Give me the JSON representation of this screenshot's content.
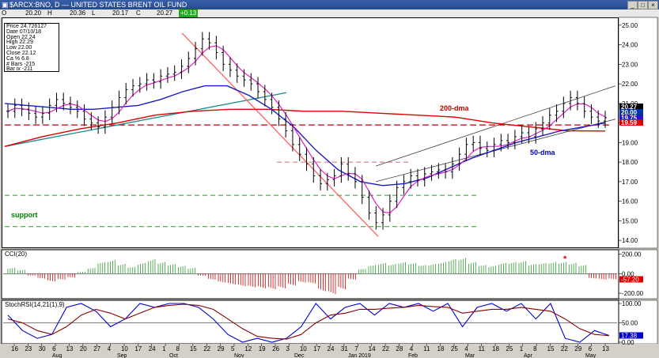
{
  "window": {
    "title": "$ARCX:BNO, D — UNITED STATES BRENT OIL FUND"
  },
  "ohlc_bar": {
    "open_tag": "O",
    "open": "20.20",
    "high_tag": "H",
    "high": "20.36",
    "low_tag": "L",
    "low": "20.17",
    "close_tag": "C",
    "close": "20.27",
    "change": "+0.13"
  },
  "info_panel": [
    {
      "label": "Price",
      "value": "24.726127"
    },
    {
      "label": "Date",
      "value": "07/10/18"
    },
    {
      "label": "Open",
      "value": "22.24"
    },
    {
      "label": "High",
      "value": "22.29"
    },
    {
      "label": "Low",
      "value": "22.00"
    },
    {
      "label": "Close",
      "value": "22.12"
    },
    {
      "label": "Ca %",
      "value": "6.8"
    },
    {
      "label": "# Bars",
      "value": "-215"
    },
    {
      "label": "Bar ix",
      "value": "-211"
    }
  ],
  "colors": {
    "bars": "#000000",
    "dma200": "#e00000",
    "dma50": "#1a1acc",
    "short_ma": "#e020c0",
    "downtrend": "#ff6060",
    "teal_line": "#1a8a8a",
    "channel": "#404040",
    "support": "#2a9a2a",
    "cci_pos": "#2a9a2a",
    "cci_neg": "#cc0000",
    "rsi_fast": "#0000cc",
    "rsi_slow": "#880000"
  },
  "chart_data": [
    {
      "type": "line",
      "title": "",
      "x_tick_labels": [
        "16",
        "23",
        "30",
        "6",
        "13",
        "20",
        "27",
        "4",
        "10",
        "17",
        "24",
        "1",
        "8",
        "15",
        "22",
        "29",
        "5",
        "12",
        "19",
        "26",
        "3",
        "10",
        "17",
        "24",
        "31",
        "7",
        "14",
        "22",
        "28",
        "4",
        "11",
        "18",
        "25",
        "4",
        "11",
        "18",
        "25",
        "1",
        "8",
        "15",
        "22",
        "29",
        "6",
        "13"
      ],
      "month_labels": [
        "Aug",
        "Sep",
        "Oct",
        "Nov",
        "Dec",
        "Jan 2019",
        "Feb",
        "Mar",
        "Apr",
        "May"
      ],
      "ylim": [
        13.6,
        25.4
      ],
      "y_ticks": [
        14,
        15,
        16,
        17,
        18,
        19,
        20,
        21,
        22,
        23,
        24,
        25
      ],
      "y_tick_labels": [
        "14.00",
        "15.00",
        "16.00",
        "17.00",
        "18.00",
        "19.00",
        "20.00",
        "21.00",
        "22.00",
        "23.00",
        "24.00",
        "25.00"
      ],
      "axis_markers": [
        {
          "label": "20.27",
          "value": 20.27,
          "color": "#000000"
        },
        {
          "label": "20.00",
          "value": 20.0,
          "color": "#0033aa"
        },
        {
          "label": "19.75",
          "value": 19.75,
          "color": "#1a1acc"
        },
        {
          "label": "19.59",
          "value": 19.59,
          "color": "#e00000"
        }
      ],
      "close": [
        20.6,
        20.9,
        20.7,
        20.5,
        20.3,
        20.5,
        20.9,
        21.2,
        21.0,
        20.8,
        20.6,
        20.2,
        20.0,
        19.8,
        20.3,
        20.8,
        21.3,
        21.7,
        21.9,
        22.0,
        22.2,
        22.1,
        22.4,
        22.5,
        22.6,
        22.9,
        23.3,
        23.8,
        24.3,
        24.1,
        23.6,
        23.0,
        22.7,
        22.4,
        22.2,
        22.0,
        21.6,
        21.2,
        20.8,
        20.2,
        19.6,
        18.9,
        18.4,
        17.9,
        17.3,
        16.9,
        17.1,
        17.3,
        17.9,
        17.4,
        17.0,
        16.2,
        15.4,
        14.9,
        15.3,
        16.0,
        16.7,
        17.0,
        17.3,
        17.1,
        17.4,
        17.5,
        17.6,
        17.5,
        17.9,
        18.4,
        18.9,
        19.0,
        18.7,
        18.6,
        18.9,
        19.1,
        19.0,
        19.3,
        19.5,
        19.3,
        19.7,
        20.0,
        20.4,
        20.6,
        21.0,
        21.3,
        21.0,
        20.6,
        20.3,
        20.1,
        20.27
      ],
      "dma50": [
        21.0,
        20.9,
        20.8,
        20.7,
        20.7,
        20.8,
        20.9,
        21.2,
        21.6,
        21.9,
        21.9,
        21.4,
        20.7,
        19.8,
        18.6,
        17.6,
        17.0,
        16.8,
        16.9,
        17.2,
        17.7,
        18.2,
        18.6,
        19.0,
        19.3,
        19.6,
        19.8,
        20.0
      ],
      "dma200": [
        18.8,
        19.3,
        19.7,
        20.0,
        20.4,
        20.6,
        20.7,
        20.7,
        20.6,
        20.6,
        20.5,
        20.4,
        20.3,
        20.0,
        19.8,
        19.6,
        19.59
      ],
      "downtrend": [
        [
          24.6,
          14.2
        ]
      ],
      "support_levels": [
        16.3,
        14.7
      ],
      "resistance_level": 18.0,
      "annotations": [
        "200-dma",
        "50-dma",
        "support"
      ]
    },
    {
      "type": "bar",
      "title": "CCI(20)",
      "ylim": [
        -240,
        230
      ],
      "y_ticks": [
        200,
        0,
        -200
      ],
      "y_tick_labels": [
        "200.00",
        "0.00",
        "-200.00"
      ],
      "last_value_label": "-57.20",
      "values": [
        60,
        40,
        -20,
        -50,
        -80,
        -60,
        -40,
        20,
        60,
        120,
        140,
        100,
        70,
        110,
        150,
        120,
        100,
        80,
        60,
        -20,
        -60,
        -90,
        -110,
        -130,
        -140,
        -150,
        -160,
        -150,
        -120,
        -90,
        -100,
        -180,
        -210,
        -160,
        -60,
        50,
        90,
        110,
        100,
        120,
        110,
        90,
        100,
        120,
        150,
        160,
        120,
        90,
        80,
        110,
        120,
        130,
        100,
        110,
        120,
        120,
        110,
        90,
        -50,
        -60,
        -57.2
      ],
      "annotations": [
        "*"
      ]
    },
    {
      "type": "line",
      "title": "StochRSI(14,21(1),9)",
      "ylim": [
        0,
        100
      ],
      "y_ticks": [
        100,
        50,
        0
      ],
      "y_tick_labels": [
        "100.00",
        "50.00",
        "0.00"
      ],
      "last_value_label": "17.38",
      "series": [
        {
          "values": [
            70,
            30,
            10,
            20,
            90,
            100,
            80,
            40,
            60,
            100,
            90,
            100,
            100,
            90,
            60,
            20,
            0,
            10,
            0,
            10,
            40,
            100,
            60,
            90,
            100,
            70,
            100,
            90,
            100,
            80,
            100,
            40,
            90,
            100,
            80,
            100,
            60,
            100,
            10,
            0,
            30,
            17.38
          ]
        },
        {
          "values": [
            60,
            50,
            30,
            20,
            40,
            70,
            85,
            75,
            60,
            75,
            90,
            95,
            98,
            95,
            85,
            60,
            35,
            15,
            10,
            8,
            20,
            50,
            70,
            75,
            85,
            85,
            88,
            90,
            95,
            92,
            90,
            75,
            80,
            85,
            85,
            90,
            85,
            80,
            60,
            35,
            20,
            17
          ]
        }
      ]
    }
  ]
}
